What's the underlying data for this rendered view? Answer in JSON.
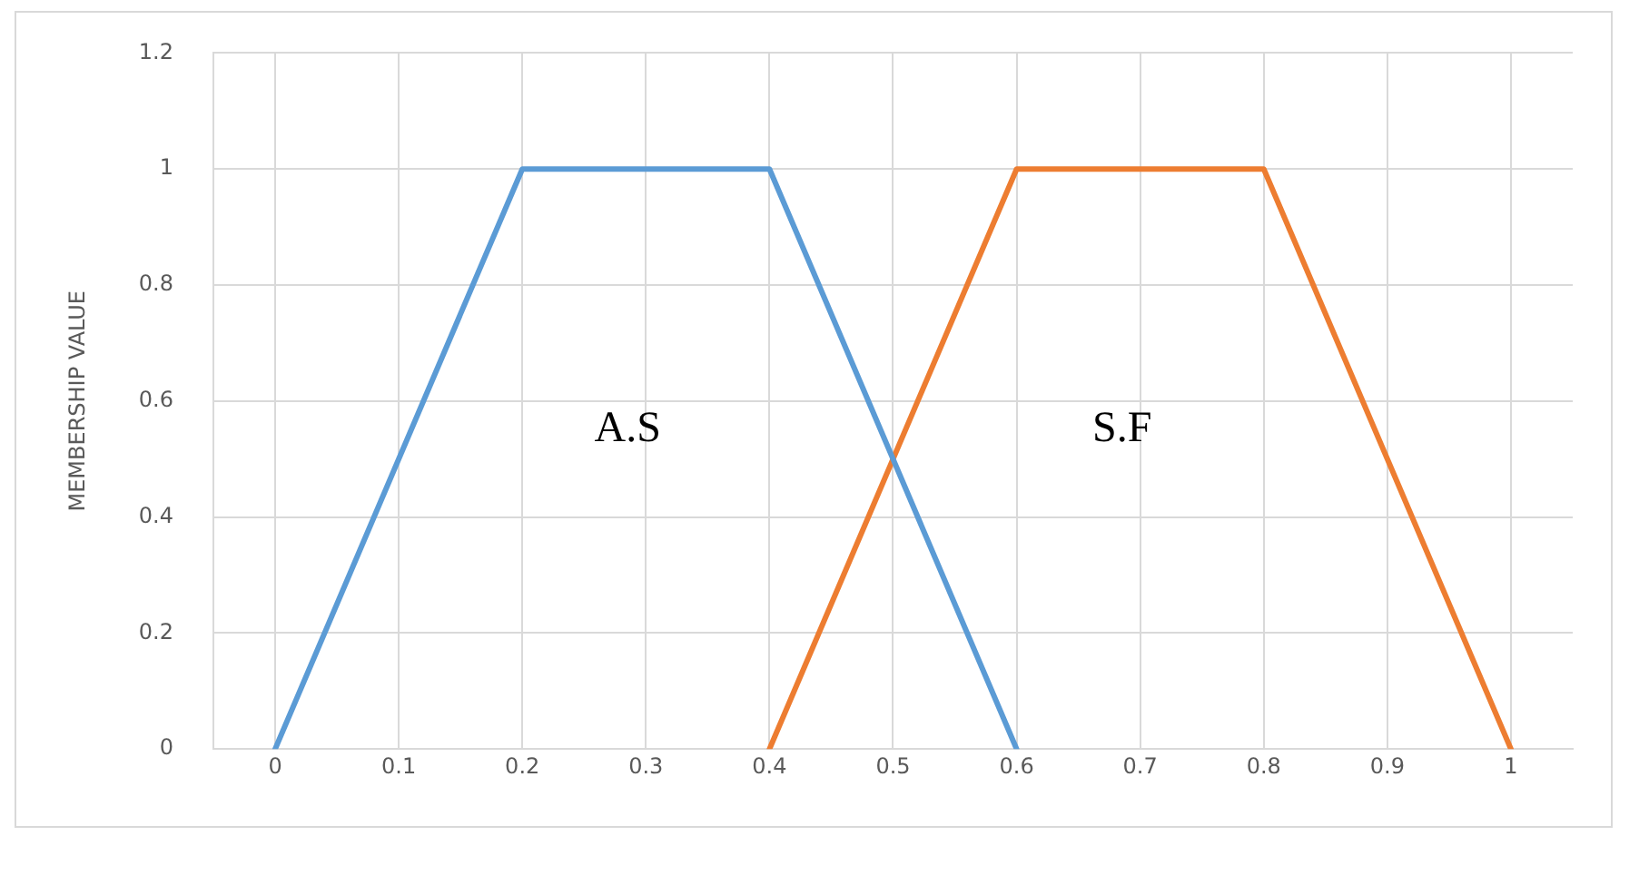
{
  "chart_data": {
    "type": "line",
    "ylabel": "MEMBERSHIP VALUE",
    "series": [
      {
        "color": "#5b9bd5",
        "x": [
          0,
          0.2,
          0.4,
          0.6
        ],
        "values": [
          0,
          1,
          1,
          0
        ]
      },
      {
        "color": "#ed7d31",
        "x": [
          0.4,
          0.6,
          0.8,
          1
        ],
        "values": [
          0,
          1,
          1,
          0
        ]
      }
    ],
    "annotations": [
      "A.S",
      "S.F"
    ],
    "xlim": [
      -0.05,
      1.05
    ],
    "xticks": [
      0,
      0.1,
      0.2,
      0.3,
      0.4,
      0.5,
      0.6,
      0.7,
      0.8,
      0.9,
      1
    ],
    "ylim": [
      0,
      1.2
    ],
    "yticks": [
      0,
      0.2,
      0.4,
      0.6,
      0.8,
      1,
      1.2
    ],
    "grid": true,
    "legend": false,
    "marker": "none",
    "line_style": "solid"
  }
}
